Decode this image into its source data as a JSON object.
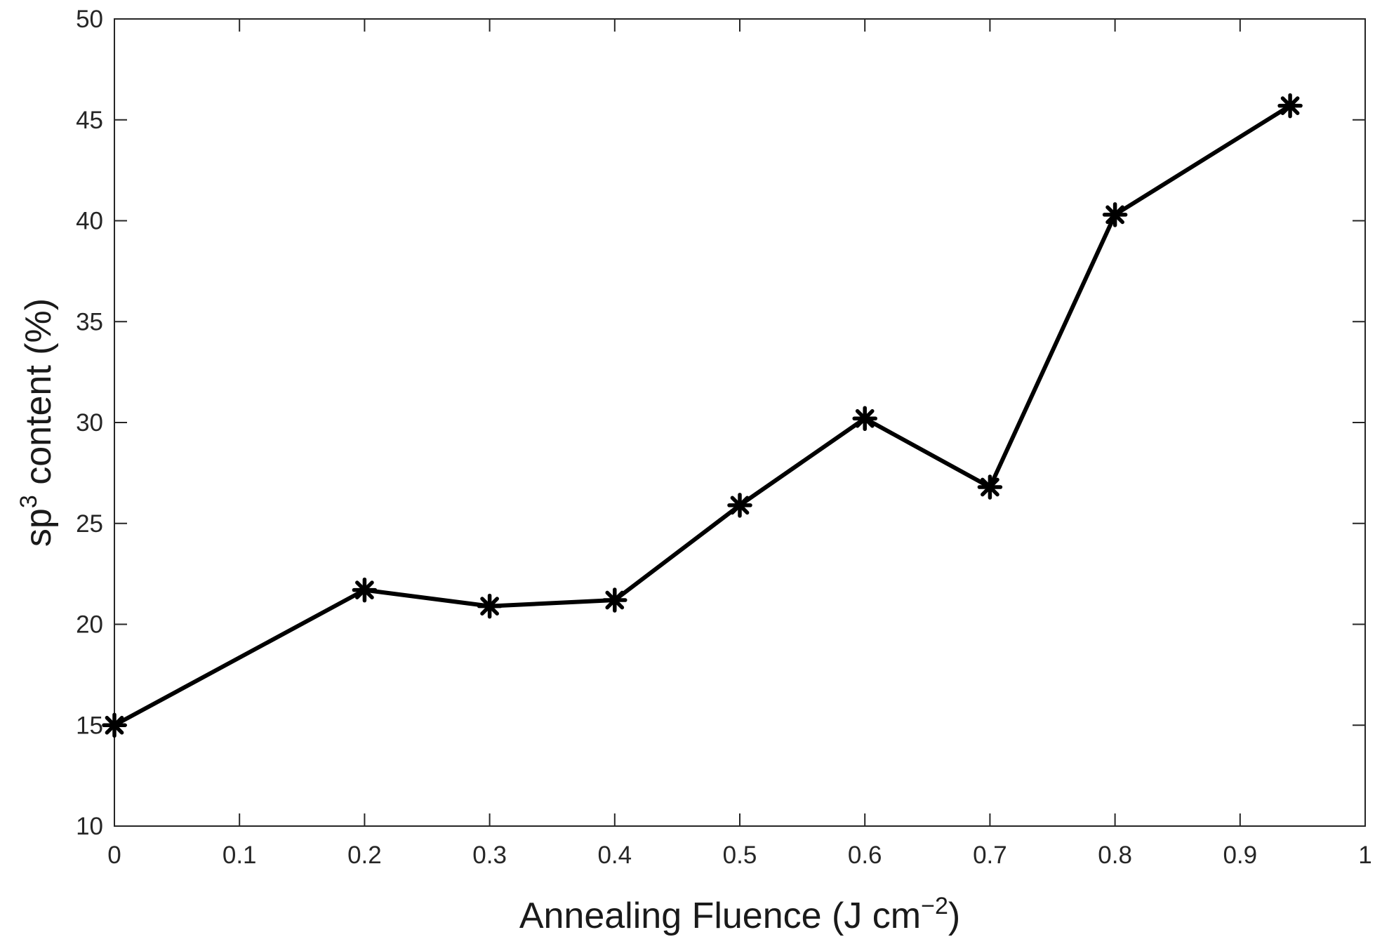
{
  "chart_data": {
    "type": "line",
    "title": "",
    "xlabel": {
      "base": "Annealing Fluence (J cm",
      "sup": "−2",
      "tail": ")"
    },
    "ylabel": {
      "base": "sp",
      "sup": "3",
      "tail": " content (%)"
    },
    "xlim": [
      0,
      1
    ],
    "ylim": [
      10,
      50
    ],
    "x_ticks": [
      0,
      0.1,
      0.2,
      0.3,
      0.4,
      0.5,
      0.6,
      0.7,
      0.8,
      0.9,
      1
    ],
    "x_tick_labels": [
      "0",
      "0.1",
      "0.2",
      "0.3",
      "0.4",
      "0.5",
      "0.6",
      "0.7",
      "0.8",
      "0.9",
      "1"
    ],
    "y_ticks": [
      10,
      15,
      20,
      25,
      30,
      35,
      40,
      45,
      50
    ],
    "y_tick_labels": [
      "10",
      "15",
      "20",
      "25",
      "30",
      "35",
      "40",
      "45",
      "50"
    ],
    "grid": false,
    "legend": "none",
    "marker": "asterisk",
    "line_color": "#000000",
    "series": [
      {
        "x": [
          0,
          0.2,
          0.3,
          0.4,
          0.5,
          0.6,
          0.7,
          0.8,
          0.94
        ],
        "values": [
          15.0,
          21.7,
          20.9,
          21.2,
          25.9,
          30.2,
          26.8,
          40.3,
          45.7
        ]
      }
    ]
  }
}
